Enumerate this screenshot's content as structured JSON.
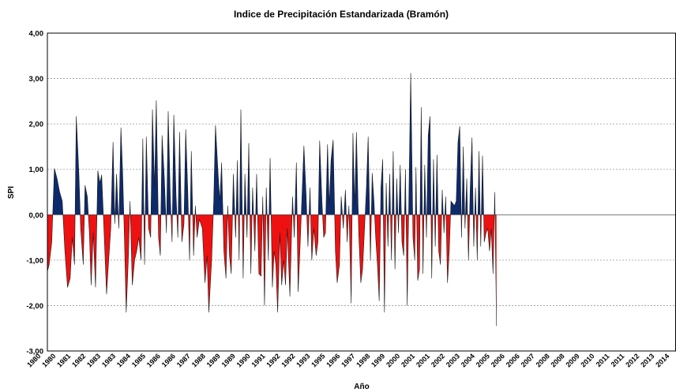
{
  "chart_data": {
    "type": "area",
    "title": "Indice de Precipitación Estandarizada (Bramón)",
    "xlabel": "Año",
    "ylabel": "SPI",
    "ylim": [
      -3,
      4
    ],
    "yticks": [
      "4,00",
      "3,00",
      "2,00",
      "1,00",
      "0,00",
      "-1,00",
      "-2,00",
      "-3,00"
    ],
    "xlim": [
      1979.5,
      2015.4
    ],
    "xtick_labels": [
      "1980",
      "1980",
      "1981",
      "1982",
      "1983",
      "1983",
      "1984",
      "1985",
      "1986",
      "1986",
      "1987",
      "1988",
      "1989",
      "1989",
      "1990",
      "1991",
      "1992",
      "1992",
      "1993",
      "1995",
      "1996",
      "1997",
      "1998",
      "1999",
      "2000",
      "2001",
      "2001",
      "2002",
      "2003",
      "2004",
      "2005",
      "2006",
      "2006",
      "2007",
      "2008",
      "2008",
      "2009",
      "2010",
      "2011",
      "2011",
      "2012",
      "2013",
      "2014"
    ],
    "grid": true,
    "positive_color": "#0d2a6b",
    "negative_color": "#ee1111",
    "series": [
      {
        "values": [
          [
            1979.5,
            -1.25
          ],
          [
            1979.6,
            -1.1
          ],
          [
            1979.75,
            -0.6
          ],
          [
            1979.9,
            1.02
          ],
          [
            1980.05,
            0.8
          ],
          [
            1980.2,
            0.5
          ],
          [
            1980.35,
            0.3
          ],
          [
            1980.5,
            -0.8
          ],
          [
            1980.65,
            -1.6
          ],
          [
            1980.8,
            -1.4
          ],
          [
            1980.92,
            -0.5
          ],
          [
            1981.05,
            -1.1
          ],
          [
            1981.15,
            2.17
          ],
          [
            1981.3,
            0.9
          ],
          [
            1981.4,
            -0.3
          ],
          [
            1981.55,
            -1.1
          ],
          [
            1981.65,
            0.65
          ],
          [
            1981.78,
            0.4
          ],
          [
            1981.9,
            -0.4
          ],
          [
            1982.0,
            -1.55
          ],
          [
            1982.12,
            -0.4
          ],
          [
            1982.25,
            -1.6
          ],
          [
            1982.38,
            0.97
          ],
          [
            1982.5,
            0.7
          ],
          [
            1982.6,
            0.88
          ],
          [
            1982.75,
            -0.5
          ],
          [
            1982.88,
            -1.75
          ],
          [
            1983.0,
            -1.0
          ],
          [
            1983.12,
            -0.3
          ],
          [
            1983.25,
            1.6
          ],
          [
            1983.35,
            -0.2
          ],
          [
            1983.45,
            0.9
          ],
          [
            1983.58,
            -0.3
          ],
          [
            1983.7,
            1.92
          ],
          [
            1983.8,
            0.9
          ],
          [
            1983.9,
            -0.5
          ],
          [
            1984.0,
            -2.15
          ],
          [
            1984.12,
            -1.0
          ],
          [
            1984.22,
            0.3
          ],
          [
            1984.35,
            -1.55
          ],
          [
            1984.48,
            -1.0
          ],
          [
            1984.6,
            -0.8
          ],
          [
            1984.72,
            -0.5
          ],
          [
            1984.85,
            -1.0
          ],
          [
            1984.95,
            1.68
          ],
          [
            1985.05,
            -1.1
          ],
          [
            1985.15,
            1.72
          ],
          [
            1985.28,
            -0.3
          ],
          [
            1985.4,
            -0.5
          ],
          [
            1985.5,
            2.32
          ],
          [
            1985.62,
            0.6
          ],
          [
            1985.72,
            2.52
          ],
          [
            1985.85,
            -0.5
          ],
          [
            1985.95,
            -0.9
          ],
          [
            1986.05,
            1.75
          ],
          [
            1986.18,
            0.8
          ],
          [
            1986.3,
            -0.4
          ],
          [
            1986.4,
            2.28
          ],
          [
            1986.52,
            0.4
          ],
          [
            1986.62,
            -0.6
          ],
          [
            1986.72,
            2.2
          ],
          [
            1986.85,
            0.4
          ],
          [
            1986.95,
            -0.5
          ],
          [
            1987.05,
            1.82
          ],
          [
            1987.18,
            -0.6
          ],
          [
            1987.3,
            -0.2
          ],
          [
            1987.4,
            1.88
          ],
          [
            1987.52,
            0.5
          ],
          [
            1987.62,
            -1.0
          ],
          [
            1987.72,
            1.4
          ],
          [
            1987.85,
            -0.9
          ],
          [
            1987.95,
            0.2
          ],
          [
            1988.05,
            -0.5
          ],
          [
            1988.18,
            -0.1
          ],
          [
            1988.35,
            -0.3
          ],
          [
            1988.5,
            -1.5
          ],
          [
            1988.62,
            -0.9
          ],
          [
            1988.72,
            -2.15
          ],
          [
            1988.88,
            -1.0
          ],
          [
            1989.0,
            0.3
          ],
          [
            1989.1,
            1.97
          ],
          [
            1989.25,
            0.9
          ],
          [
            1989.35,
            0.3
          ],
          [
            1989.45,
            1.15
          ],
          [
            1989.58,
            -0.8
          ],
          [
            1989.7,
            -1.4
          ],
          [
            1989.8,
            0.2
          ],
          [
            1989.9,
            -0.9
          ],
          [
            1990.0,
            -1.3
          ],
          [
            1990.12,
            0.9
          ],
          [
            1990.25,
            -0.5
          ],
          [
            1990.35,
            1.2
          ],
          [
            1990.45,
            -1.0
          ],
          [
            1990.55,
            2.32
          ],
          [
            1990.68,
            -1.4
          ],
          [
            1990.78,
            0.9
          ],
          [
            1990.9,
            -0.5
          ],
          [
            1991.0,
            1.58
          ],
          [
            1991.12,
            -1.3
          ],
          [
            1991.22,
            0.6
          ],
          [
            1991.35,
            -0.8
          ],
          [
            1991.45,
            0.9
          ],
          [
            1991.58,
            -1.3
          ],
          [
            1991.7,
            -1.35
          ],
          [
            1991.8,
            0.4
          ],
          [
            1991.9,
            -2.0
          ],
          [
            1992.0,
            0.6
          ],
          [
            1992.12,
            -1.0
          ],
          [
            1992.22,
            1.25
          ],
          [
            1992.35,
            -1.6
          ],
          [
            1992.45,
            -0.8
          ],
          [
            1992.55,
            -1.1
          ],
          [
            1992.65,
            -2.15
          ],
          [
            1992.78,
            -0.4
          ],
          [
            1992.88,
            -1.55
          ],
          [
            1993.0,
            -1.0
          ],
          [
            1993.1,
            -1.55
          ],
          [
            1993.2,
            -0.3
          ],
          [
            1993.35,
            -1.8
          ],
          [
            1993.5,
            0.4
          ],
          [
            1993.6,
            -0.5
          ],
          [
            1993.72,
            1.15
          ],
          [
            1993.82,
            -1.7
          ],
          [
            1993.92,
            -0.8
          ],
          [
            1994.05,
            0.5
          ],
          [
            1994.15,
            1.52
          ],
          [
            1994.28,
            0.4
          ],
          [
            1994.38,
            -0.7
          ],
          [
            1994.5,
            0.6
          ],
          [
            1994.6,
            -1.0
          ],
          [
            1994.72,
            -0.3
          ],
          [
            1994.85,
            -0.9
          ],
          [
            1994.95,
            -0.6
          ],
          [
            1995.05,
            1.63
          ],
          [
            1995.18,
            0.3
          ],
          [
            1995.28,
            -0.5
          ],
          [
            1995.38,
            -0.4
          ],
          [
            1995.5,
            1.55
          ],
          [
            1995.6,
            0.2
          ],
          [
            1995.7,
            1.2
          ],
          [
            1995.82,
            1.65
          ],
          [
            1995.95,
            -0.8
          ],
          [
            1996.05,
            -1.5
          ],
          [
            1996.18,
            -1.1
          ],
          [
            1996.28,
            0.4
          ],
          [
            1996.4,
            -0.3
          ],
          [
            1996.52,
            0.55
          ],
          [
            1996.62,
            -0.6
          ],
          [
            1996.72,
            0.2
          ],
          [
            1996.85,
            -1.95
          ],
          [
            1996.95,
            1.8
          ],
          [
            1997.05,
            0.2
          ],
          [
            1997.15,
            1.82
          ],
          [
            1997.28,
            -0.4
          ],
          [
            1997.4,
            -1.5
          ],
          [
            1997.5,
            -1.2
          ],
          [
            1997.6,
            -0.4
          ],
          [
            1997.72,
            0.6
          ],
          [
            1997.82,
            1.72
          ],
          [
            1997.95,
            -1.0
          ],
          [
            1998.05,
            0.92
          ],
          [
            1998.15,
            0.3
          ],
          [
            1998.25,
            -0.5
          ],
          [
            1998.35,
            -1.1
          ],
          [
            1998.45,
            -1.9
          ],
          [
            1998.55,
            0.6
          ],
          [
            1998.65,
            1.22
          ],
          [
            1998.75,
            -2.15
          ],
          [
            1998.85,
            0.7
          ],
          [
            1998.95,
            -0.7
          ],
          [
            1999.05,
            0.9
          ],
          [
            1999.15,
            -1.0
          ],
          [
            1999.25,
            1.4
          ],
          [
            1999.35,
            -1.2
          ],
          [
            1999.45,
            0.8
          ],
          [
            1999.55,
            -0.4
          ],
          [
            1999.65,
            1.1
          ],
          [
            1999.75,
            -0.6
          ],
          [
            1999.85,
            -0.9
          ],
          [
            1999.95,
            1.0
          ],
          [
            2000.05,
            -2.0
          ],
          [
            2000.15,
            0.5
          ],
          [
            2000.25,
            3.12
          ],
          [
            2000.38,
            -0.5
          ],
          [
            2000.48,
            -1.0
          ],
          [
            2000.55,
            1.05
          ],
          [
            2000.65,
            -1.45
          ],
          [
            2000.75,
            -1.2
          ],
          [
            2000.85,
            2.37
          ],
          [
            2000.95,
            -1.3
          ],
          [
            2001.05,
            1.1
          ],
          [
            2001.15,
            -0.5
          ],
          [
            2001.25,
            1.75
          ],
          [
            2001.35,
            2.17
          ],
          [
            2001.45,
            -1.4
          ],
          [
            2001.55,
            1.22
          ],
          [
            2001.65,
            -0.7
          ],
          [
            2001.75,
            1.32
          ],
          [
            2001.85,
            -0.8
          ],
          [
            2001.95,
            -1.1
          ],
          [
            2002.05,
            0.55
          ],
          [
            2002.15,
            -0.4
          ],
          [
            2002.25,
            0.4
          ],
          [
            2002.35,
            -1.5
          ],
          [
            2002.45,
            -0.8
          ],
          [
            2002.55,
            0.3
          ],
          [
            2002.65,
            0.25
          ],
          [
            2002.75,
            0.2
          ],
          [
            2002.85,
            0.3
          ],
          [
            2002.95,
            1.6
          ],
          [
            2003.05,
            1.95
          ],
          [
            2003.15,
            -0.5
          ],
          [
            2003.25,
            1.5
          ],
          [
            2003.35,
            -0.3
          ],
          [
            2003.45,
            0.8
          ],
          [
            2003.55,
            -1.0
          ],
          [
            2003.65,
            0.6
          ],
          [
            2003.75,
            1.7
          ],
          [
            2003.85,
            -0.7
          ],
          [
            2003.95,
            0.6
          ],
          [
            2004.05,
            -1.0
          ],
          [
            2004.15,
            1.4
          ],
          [
            2004.25,
            -0.7
          ],
          [
            2004.35,
            1.3
          ],
          [
            2004.45,
            -0.6
          ],
          [
            2004.55,
            -0.4
          ],
          [
            2004.65,
            -0.3
          ],
          [
            2004.75,
            -0.8
          ],
          [
            2004.85,
            -0.3
          ],
          [
            2004.95,
            -1.3
          ],
          [
            2005.05,
            0.5
          ],
          [
            2005.15,
            -2.45
          ]
        ]
      }
    ]
  }
}
